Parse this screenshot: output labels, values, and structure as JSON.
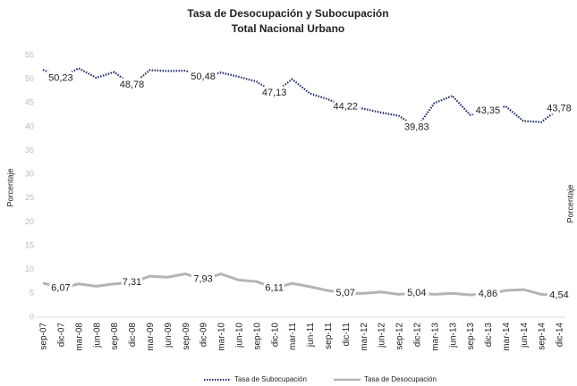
{
  "chart_data": {
    "type": "line",
    "title": "Tasa de Desocupación y Subocupación",
    "subtitle": "Total Nacional Urbano",
    "y_label": "Porcentaje",
    "y2_label": "Porcentaje",
    "categories": [
      "sep-07",
      "dic-07",
      "mar-08",
      "jun-08",
      "sep-08",
      "dic-08",
      "mar-09",
      "jun-09",
      "sep-09",
      "dic-09",
      "mar-10",
      "jun-10",
      "sep-10",
      "dic-10",
      "mar-11",
      "jun-11",
      "sep-11",
      "dic-11",
      "mar-12",
      "jun-12",
      "sep-12",
      "dic-12",
      "mar-13",
      "jun-13",
      "sep-13",
      "dic-13",
      "mar-14",
      "jun-14",
      "sep-14",
      "dic-14"
    ],
    "series": [
      {
        "name": "Tasa de Subocupación",
        "color": "#1f2a6b",
        "dash": true,
        "values": [
          52,
          50.23,
          52.3,
          50.3,
          51.5,
          48.78,
          51.9,
          51.7,
          51.8,
          50.48,
          51.4,
          50.5,
          49.5,
          47.13,
          50,
          47,
          45.8,
          44.22,
          43.8,
          43,
          42.3,
          39.83,
          45,
          46.5,
          42.5,
          43.35,
          44.3,
          41.2,
          41,
          43.78
        ],
        "value_labels": [
          null,
          "50,23",
          null,
          null,
          null,
          "48,78",
          null,
          null,
          null,
          "50,48",
          null,
          null,
          null,
          "47,13",
          null,
          null,
          null,
          "44,22",
          null,
          null,
          null,
          "39,83",
          null,
          null,
          null,
          "43,35",
          null,
          null,
          null,
          "43,78"
        ]
      },
      {
        "name": "Tasa de Desocupación",
        "color": "#b4b4b4",
        "dash": false,
        "values": [
          7.2,
          6.07,
          7,
          6.5,
          7,
          7.31,
          8.6,
          8.4,
          9.1,
          7.93,
          9.1,
          7.8,
          7.5,
          6.11,
          7.1,
          6.4,
          5.6,
          5.07,
          5,
          5.3,
          4.8,
          5.04,
          4.8,
          5,
          4.7,
          4.86,
          5.6,
          5.8,
          4.8,
          4.54
        ],
        "value_labels": [
          null,
          "6,07",
          null,
          null,
          null,
          "7,31",
          null,
          null,
          null,
          "7,93",
          null,
          null,
          null,
          "6,11",
          null,
          null,
          null,
          "5,07",
          null,
          null,
          null,
          "5,04",
          null,
          null,
          null,
          "4,86",
          null,
          null,
          null,
          "4,54"
        ]
      }
    ],
    "ylim": [
      0,
      55
    ],
    "yticks": [
      0,
      5,
      10,
      15,
      20,
      25,
      30,
      35,
      40,
      45,
      50,
      55
    ],
    "legend": "bottom"
  }
}
